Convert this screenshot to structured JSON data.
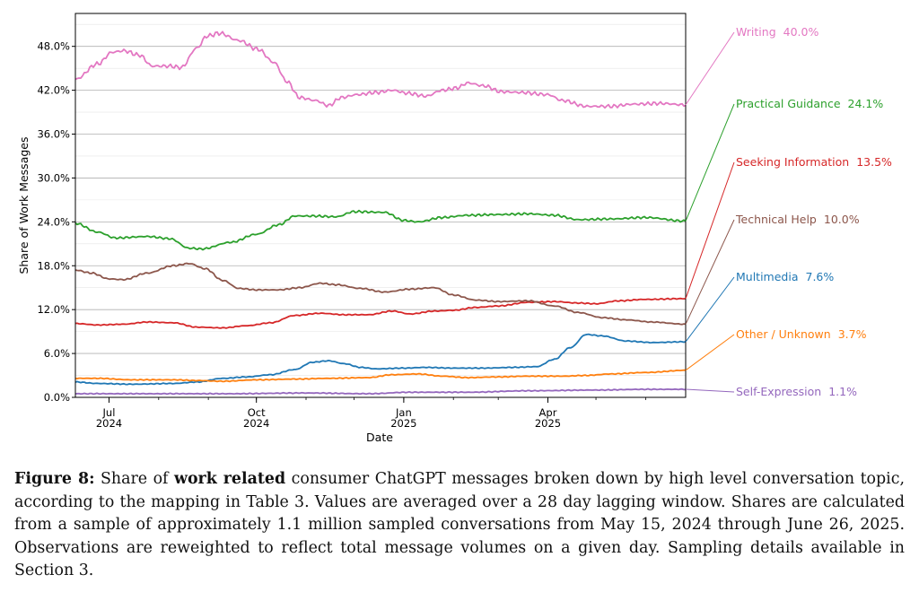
{
  "chart_data": {
    "type": "line",
    "xlabel": "Date",
    "ylabel": "Share of Work Messages",
    "x_range": [
      "2024-06-10",
      "2025-06-26"
    ],
    "ylim": [
      0,
      52.5
    ],
    "y_ticks": [
      0,
      6,
      12,
      18,
      24,
      30,
      36,
      42,
      48
    ],
    "y_tick_labels": [
      "0.0%",
      "6.0%",
      "12.0%",
      "18.0%",
      "24.0%",
      "30.0%",
      "36.0%",
      "42.0%",
      "48.0%"
    ],
    "x_ticks": [
      {
        "date": "2024-07-01",
        "month": "Jul",
        "year": "2024"
      },
      {
        "date": "2024-10-01",
        "month": "Oct",
        "year": "2024"
      },
      {
        "date": "2025-01-01",
        "month": "Jan",
        "year": "2025"
      },
      {
        "date": "2025-04-01",
        "month": "Apr",
        "year": "2025"
      }
    ],
    "grid": true,
    "series": [
      {
        "name": "Writing",
        "end_label": "40.0%",
        "color": "#e377c2",
        "points": [
          [
            "2024-06-10",
            43.5
          ],
          [
            "2024-06-24",
            45.6
          ],
          [
            "2024-07-03",
            47.2
          ],
          [
            "2024-07-10",
            47.4
          ],
          [
            "2024-07-20",
            46.8
          ],
          [
            "2024-07-28",
            45.3
          ],
          [
            "2024-08-08",
            45.3
          ],
          [
            "2024-08-15",
            45.1
          ],
          [
            "2024-08-25",
            47.8
          ],
          [
            "2024-08-31",
            49.4
          ],
          [
            "2024-09-08",
            49.8
          ],
          [
            "2024-09-20",
            48.8
          ],
          [
            "2024-10-02",
            47.6
          ],
          [
            "2024-10-12",
            45.8
          ],
          [
            "2024-10-20",
            43.2
          ],
          [
            "2024-10-28",
            41.0
          ],
          [
            "2024-11-07",
            40.6
          ],
          [
            "2024-11-15",
            39.9
          ],
          [
            "2024-11-23",
            41.0
          ],
          [
            "2024-12-03",
            41.4
          ],
          [
            "2024-12-15",
            41.7
          ],
          [
            "2024-12-25",
            42.0
          ],
          [
            "2025-01-03",
            41.6
          ],
          [
            "2025-01-15",
            41.2
          ],
          [
            "2025-01-25",
            42.0
          ],
          [
            "2025-02-03",
            42.3
          ],
          [
            "2025-02-10",
            43.0
          ],
          [
            "2025-02-20",
            42.6
          ],
          [
            "2025-03-03",
            41.8
          ],
          [
            "2025-03-15",
            41.7
          ],
          [
            "2025-04-01",
            41.4
          ],
          [
            "2025-04-10",
            40.6
          ],
          [
            "2025-04-25",
            39.8
          ],
          [
            "2025-05-10",
            39.8
          ],
          [
            "2025-05-25",
            40.1
          ],
          [
            "2025-06-10",
            40.2
          ],
          [
            "2025-06-26",
            40.0
          ]
        ]
      },
      {
        "name": "Practical Guidance",
        "end_label": "24.1%",
        "color": "#2ca02c",
        "points": [
          [
            "2024-06-10",
            23.8
          ],
          [
            "2024-06-24",
            22.6
          ],
          [
            "2024-07-05",
            21.8
          ],
          [
            "2024-07-25",
            22.0
          ],
          [
            "2024-08-08",
            21.7
          ],
          [
            "2024-08-20",
            20.4
          ],
          [
            "2024-08-28",
            20.3
          ],
          [
            "2024-09-15",
            21.2
          ],
          [
            "2024-10-01",
            22.3
          ],
          [
            "2024-10-15",
            23.6
          ],
          [
            "2024-10-25",
            24.8
          ],
          [
            "2024-11-05",
            24.8
          ],
          [
            "2024-11-20",
            24.7
          ],
          [
            "2024-12-01",
            25.4
          ],
          [
            "2024-12-20",
            25.3
          ],
          [
            "2025-01-01",
            24.2
          ],
          [
            "2025-01-10",
            24.0
          ],
          [
            "2025-01-25",
            24.6
          ],
          [
            "2025-02-10",
            24.9
          ],
          [
            "2025-03-01",
            25.0
          ],
          [
            "2025-03-20",
            25.1
          ],
          [
            "2025-04-05",
            24.9
          ],
          [
            "2025-04-20",
            24.3
          ],
          [
            "2025-05-10",
            24.4
          ],
          [
            "2025-06-01",
            24.6
          ],
          [
            "2025-06-26",
            24.1
          ]
        ]
      },
      {
        "name": "Seeking Information",
        "end_label": "13.5%",
        "color": "#d62728",
        "points": [
          [
            "2024-06-10",
            10.1
          ],
          [
            "2024-06-24",
            9.9
          ],
          [
            "2024-07-10",
            10.0
          ],
          [
            "2024-07-25",
            10.3
          ],
          [
            "2024-08-10",
            10.2
          ],
          [
            "2024-08-25",
            9.6
          ],
          [
            "2024-09-10",
            9.5
          ],
          [
            "2024-09-25",
            9.8
          ],
          [
            "2024-10-10",
            10.2
          ],
          [
            "2024-10-25",
            11.2
          ],
          [
            "2024-11-10",
            11.5
          ],
          [
            "2024-11-25",
            11.3
          ],
          [
            "2024-12-10",
            11.3
          ],
          [
            "2024-12-25",
            11.8
          ],
          [
            "2025-01-05",
            11.4
          ],
          [
            "2025-01-20",
            11.8
          ],
          [
            "2025-02-01",
            11.9
          ],
          [
            "2025-02-15",
            12.3
          ],
          [
            "2025-03-01",
            12.5
          ],
          [
            "2025-03-20",
            13.0
          ],
          [
            "2025-04-05",
            13.1
          ],
          [
            "2025-04-20",
            12.9
          ],
          [
            "2025-05-01",
            12.8
          ],
          [
            "2025-05-15",
            13.2
          ],
          [
            "2025-06-01",
            13.4
          ],
          [
            "2025-06-26",
            13.5
          ]
        ]
      },
      {
        "name": "Technical Help",
        "end_label": "10.0%",
        "color": "#8c564b",
        "points": [
          [
            "2024-06-10",
            17.4
          ],
          [
            "2024-06-20",
            17.0
          ],
          [
            "2024-07-01",
            16.2
          ],
          [
            "2024-07-10",
            16.1
          ],
          [
            "2024-07-25",
            17.0
          ],
          [
            "2024-08-10",
            18.0
          ],
          [
            "2024-08-20",
            18.3
          ],
          [
            "2024-08-30",
            17.6
          ],
          [
            "2024-09-10",
            16.0
          ],
          [
            "2024-09-20",
            14.9
          ],
          [
            "2024-10-01",
            14.7
          ],
          [
            "2024-10-15",
            14.7
          ],
          [
            "2024-10-28",
            15.0
          ],
          [
            "2024-11-10",
            15.6
          ],
          [
            "2024-11-20",
            15.4
          ],
          [
            "2024-12-05",
            14.9
          ],
          [
            "2024-12-20",
            14.4
          ],
          [
            "2025-01-05",
            14.8
          ],
          [
            "2025-01-20",
            15.0
          ],
          [
            "2025-02-01",
            14.0
          ],
          [
            "2025-02-15",
            13.3
          ],
          [
            "2025-03-01",
            13.1
          ],
          [
            "2025-03-20",
            13.2
          ],
          [
            "2025-04-05",
            12.5
          ],
          [
            "2025-04-20",
            11.6
          ],
          [
            "2025-05-05",
            10.9
          ],
          [
            "2025-05-20",
            10.6
          ],
          [
            "2025-06-05",
            10.3
          ],
          [
            "2025-06-26",
            10.0
          ]
        ]
      },
      {
        "name": "Multimedia",
        "end_label": "7.6%",
        "color": "#1f77b4",
        "points": [
          [
            "2024-06-10",
            2.1
          ],
          [
            "2024-06-24",
            1.9
          ],
          [
            "2024-07-15",
            1.8
          ],
          [
            "2024-08-10",
            1.9
          ],
          [
            "2024-08-25",
            2.1
          ],
          [
            "2024-09-10",
            2.6
          ],
          [
            "2024-09-25",
            2.8
          ],
          [
            "2024-10-10",
            3.1
          ],
          [
            "2024-10-25",
            3.8
          ],
          [
            "2024-11-05",
            4.8
          ],
          [
            "2024-11-15",
            5.0
          ],
          [
            "2024-11-25",
            4.6
          ],
          [
            "2024-12-05",
            4.1
          ],
          [
            "2024-12-15",
            3.9
          ],
          [
            "2025-01-01",
            4.0
          ],
          [
            "2025-01-15",
            4.1
          ],
          [
            "2025-02-01",
            4.0
          ],
          [
            "2025-02-20",
            4.0
          ],
          [
            "2025-03-10",
            4.1
          ],
          [
            "2025-03-25",
            4.2
          ],
          [
            "2025-04-05",
            5.2
          ],
          [
            "2025-04-15",
            6.8
          ],
          [
            "2025-04-25",
            8.6
          ],
          [
            "2025-05-05",
            8.4
          ],
          [
            "2025-05-20",
            7.7
          ],
          [
            "2025-06-05",
            7.5
          ],
          [
            "2025-06-26",
            7.6
          ]
        ]
      },
      {
        "name": "Other / Unknown",
        "end_label": "3.7%",
        "color": "#ff7f0e",
        "points": [
          [
            "2024-06-10",
            2.6
          ],
          [
            "2024-06-24",
            2.6
          ],
          [
            "2024-07-15",
            2.4
          ],
          [
            "2024-08-10",
            2.4
          ],
          [
            "2024-08-25",
            2.3
          ],
          [
            "2024-09-10",
            2.2
          ],
          [
            "2024-10-01",
            2.4
          ],
          [
            "2024-10-25",
            2.5
          ],
          [
            "2024-11-15",
            2.6
          ],
          [
            "2024-12-10",
            2.7
          ],
          [
            "2024-12-25",
            3.1
          ],
          [
            "2025-01-10",
            3.2
          ],
          [
            "2025-01-25",
            2.9
          ],
          [
            "2025-02-10",
            2.7
          ],
          [
            "2025-03-01",
            2.8
          ],
          [
            "2025-03-20",
            2.9
          ],
          [
            "2025-04-10",
            2.9
          ],
          [
            "2025-04-25",
            3.0
          ],
          [
            "2025-05-10",
            3.2
          ],
          [
            "2025-06-01",
            3.4
          ],
          [
            "2025-06-26",
            3.7
          ]
        ]
      },
      {
        "name": "Self-Expression",
        "end_label": "1.1%",
        "color": "#9467bd",
        "points": [
          [
            "2024-06-10",
            0.5
          ],
          [
            "2024-06-24",
            0.5
          ],
          [
            "2024-08-01",
            0.5
          ],
          [
            "2024-09-15",
            0.5
          ],
          [
            "2024-11-01",
            0.6
          ],
          [
            "2024-12-10",
            0.5
          ],
          [
            "2025-01-05",
            0.7
          ],
          [
            "2025-02-10",
            0.7
          ],
          [
            "2025-03-20",
            0.9
          ],
          [
            "2025-05-01",
            1.0
          ],
          [
            "2025-06-01",
            1.1
          ],
          [
            "2025-06-26",
            1.1
          ]
        ]
      }
    ]
  },
  "caption": {
    "label": "Figure 8:",
    "text_1": " Share of ",
    "bold": "work related",
    "text_2": " consumer ChatGPT messages broken down by high level conversation topic, according to the mapping in Table 3. Values are averaged over a 28 day lagging window. Shares are calculated from a sample of approximately 1.1 million sampled conversations from May 15, 2024 through June 26, 2025. Observations are reweighted to reflect total message volumes on a given day. Sampling details available in Section 3."
  }
}
